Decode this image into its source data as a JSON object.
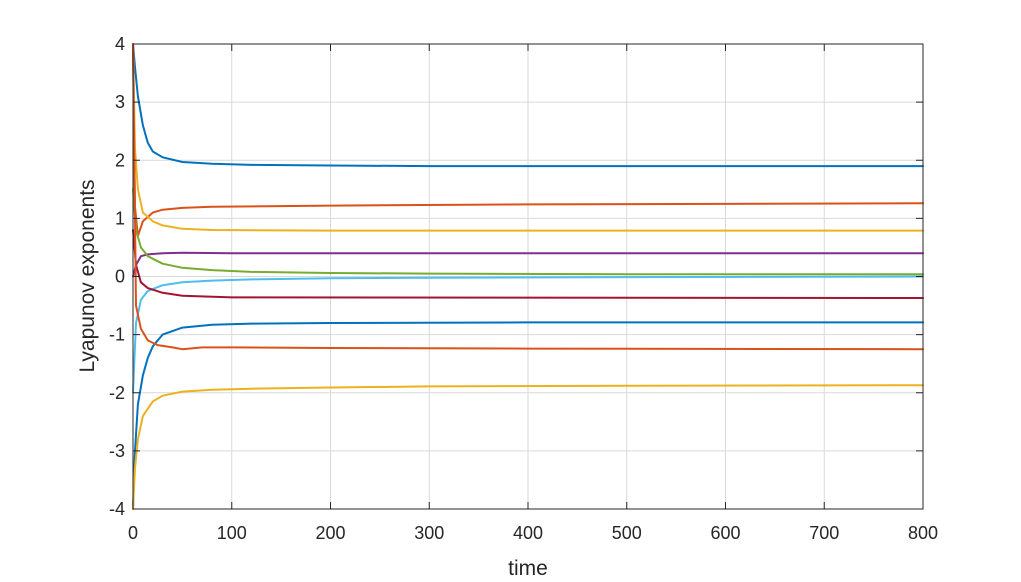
{
  "chart_data": {
    "type": "line",
    "title": "",
    "xlabel": "time",
    "ylabel": "Lyapunov exponents",
    "xlim": [
      0,
      800
    ],
    "ylim": [
      -4,
      4
    ],
    "xticks": [
      "0",
      "100",
      "200",
      "300",
      "400",
      "500",
      "600",
      "700",
      "800"
    ],
    "yticks": [
      "4",
      "3",
      "2",
      "1",
      "0",
      "-1",
      "-2",
      "-3",
      "-4"
    ],
    "grid": true,
    "legend": "none",
    "series": [
      {
        "color": "#0072BD",
        "x": [
          0,
          2,
          5,
          10,
          15,
          20,
          30,
          50,
          80,
          120,
          200,
          300,
          500,
          800
        ],
        "y": [
          4.0,
          3.6,
          3.1,
          2.6,
          2.3,
          2.15,
          2.05,
          1.97,
          1.94,
          1.92,
          1.91,
          1.9,
          1.9,
          1.9
        ]
      },
      {
        "color": "#D95319",
        "x": [
          0,
          2,
          5,
          10,
          20,
          30,
          50,
          80,
          200,
          400,
          800
        ],
        "y": [
          4.0,
          1.2,
          0.7,
          0.95,
          1.1,
          1.15,
          1.18,
          1.2,
          1.22,
          1.24,
          1.26
        ]
      },
      {
        "color": "#EDB120",
        "x": [
          0,
          2,
          5,
          10,
          20,
          30,
          50,
          80,
          200,
          800
        ],
        "y": [
          4.0,
          2.2,
          1.5,
          1.1,
          0.95,
          0.88,
          0.82,
          0.8,
          0.79,
          0.79
        ]
      },
      {
        "color": "#7E2F8E",
        "x": [
          0,
          3,
          8,
          15,
          30,
          50,
          100,
          800
        ],
        "y": [
          0.0,
          0.2,
          0.35,
          0.38,
          0.4,
          0.41,
          0.4,
          0.4
        ]
      },
      {
        "color": "#77AC30",
        "x": [
          0,
          3,
          8,
          15,
          30,
          50,
          80,
          120,
          200,
          300,
          500,
          800
        ],
        "y": [
          1.5,
          0.8,
          0.5,
          0.35,
          0.22,
          0.15,
          0.11,
          0.08,
          0.06,
          0.05,
          0.04,
          0.04
        ]
      },
      {
        "color": "#4DBEEE",
        "x": [
          0,
          3,
          8,
          15,
          30,
          50,
          80,
          120,
          200,
          300,
          500,
          800
        ],
        "y": [
          -2.0,
          -0.8,
          -0.4,
          -0.25,
          -0.15,
          -0.1,
          -0.07,
          -0.05,
          -0.03,
          -0.02,
          -0.01,
          0.0
        ]
      },
      {
        "color": "#A2142F",
        "x": [
          0,
          3,
          8,
          15,
          30,
          50,
          100,
          800
        ],
        "y": [
          0.8,
          0.2,
          -0.1,
          -0.2,
          -0.28,
          -0.33,
          -0.36,
          -0.37
        ]
      },
      {
        "color": "#0072BD",
        "x": [
          0,
          2,
          5,
          10,
          15,
          20,
          30,
          50,
          80,
          120,
          200,
          400,
          800
        ],
        "y": [
          -4.0,
          -3.0,
          -2.2,
          -1.7,
          -1.4,
          -1.2,
          -1.0,
          -0.88,
          -0.83,
          -0.81,
          -0.8,
          -0.79,
          -0.79
        ]
      },
      {
        "color": "#D95319",
        "x": [
          0,
          3,
          8,
          15,
          25,
          40,
          50,
          70,
          100,
          200,
          400,
          800
        ],
        "y": [
          4.0,
          -0.5,
          -0.9,
          -1.1,
          -1.18,
          -1.22,
          -1.25,
          -1.22,
          -1.22,
          -1.23,
          -1.24,
          -1.25
        ]
      },
      {
        "color": "#EDB120",
        "x": [
          0,
          2,
          5,
          10,
          20,
          30,
          50,
          80,
          120,
          200,
          300,
          500,
          800
        ],
        "y": [
          -4.0,
          -3.3,
          -2.8,
          -2.4,
          -2.15,
          -2.05,
          -1.98,
          -1.95,
          -1.93,
          -1.91,
          -1.89,
          -1.88,
          -1.87
        ]
      }
    ]
  }
}
